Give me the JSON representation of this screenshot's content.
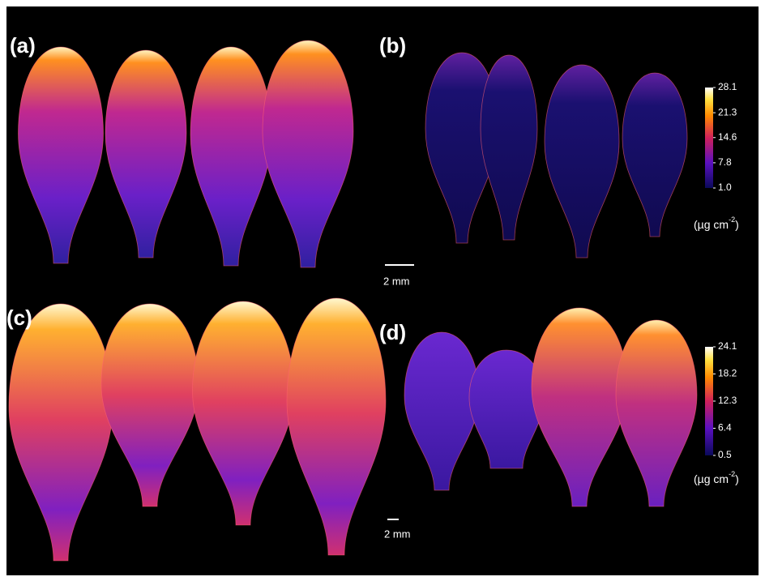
{
  "panels": [
    {
      "label": "(a)"
    },
    {
      "label": "(b)",
      "colorbar": {
        "ticks": [
          28.1,
          21.3,
          14.6,
          7.8,
          {
            "value": 1,
            "label": "1.0"
          }
        ],
        "unit": {
          "open": "(µg cm",
          "exp": "-2",
          "close": ")"
        }
      },
      "scale_bar": "2 mm"
    },
    {
      "label": "(c)"
    },
    {
      "label": "(d)",
      "colorbar": {
        "ticks": [
          24.1,
          18.2,
          12.3,
          6.4,
          0.5
        ],
        "unit": {
          "open": "(µg cm",
          "exp": "-2",
          "close": ")"
        }
      },
      "scale_bar": "2 mm"
    }
  ]
}
